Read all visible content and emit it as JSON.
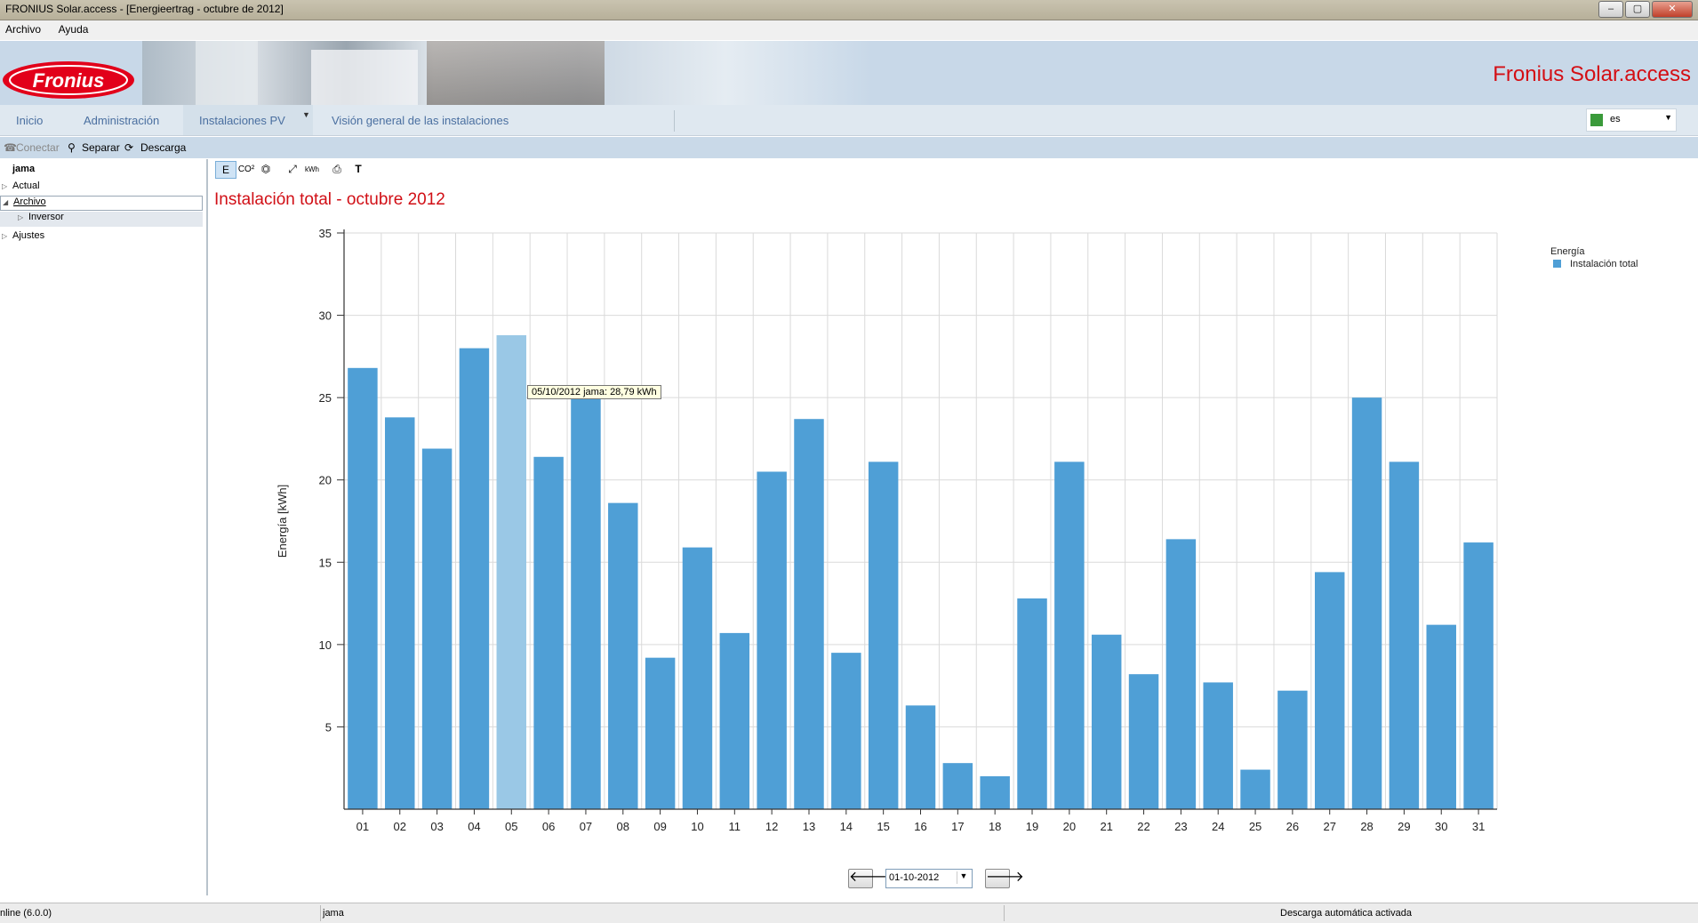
{
  "window": {
    "title": "FRONIUS Solar.access - [Energieertrag - octubre de 2012]"
  },
  "menu": [
    "Archivo",
    "Ayuda"
  ],
  "banner": {
    "app_title": "Fronius Solar.access",
    "logo_text": "Fronius"
  },
  "tabs": [
    "Inicio",
    "Administración",
    "Instalaciones PV",
    "Visión general de las instalaciones"
  ],
  "language": "es",
  "connect_toolbar": {
    "connect": "Conectar",
    "disconnect": "Separar",
    "download": "Descarga"
  },
  "sidebar": {
    "root": "jama",
    "items": [
      {
        "label": "Actual",
        "level": 0,
        "expanded": false
      },
      {
        "label": "Archivo",
        "level": 0,
        "expanded": true
      },
      {
        "label": "Inversor",
        "level": 1,
        "expanded": false
      },
      {
        "label": "Ajustes",
        "level": 0,
        "expanded": false
      }
    ]
  },
  "chart_toolbar": [
    "E",
    "CO²",
    "⏣",
    "⤢",
    "kWh",
    "⎙",
    "T"
  ],
  "chart_data": {
    "type": "bar",
    "title": "Instalación total - octubre 2012",
    "ylabel": "Energía [kWh]",
    "xlabel": "",
    "ylim": [
      0,
      35
    ],
    "yticks": [
      5,
      10,
      15,
      20,
      25,
      30,
      35
    ],
    "grid": true,
    "legend_position": "top-right",
    "legend_title": "Energía",
    "categories": [
      "01",
      "02",
      "03",
      "04",
      "05",
      "06",
      "07",
      "08",
      "09",
      "10",
      "11",
      "12",
      "13",
      "14",
      "15",
      "16",
      "17",
      "18",
      "19",
      "20",
      "21",
      "22",
      "23",
      "24",
      "25",
      "26",
      "27",
      "28",
      "29",
      "30",
      "31"
    ],
    "series": [
      {
        "name": "Instalación total",
        "color": "#4f9fd6",
        "values": [
          26.8,
          23.8,
          21.9,
          28.0,
          28.79,
          21.4,
          25.6,
          18.6,
          9.2,
          15.9,
          10.7,
          20.5,
          23.7,
          9.5,
          21.1,
          6.3,
          2.8,
          2.0,
          12.8,
          21.1,
          10.6,
          8.2,
          16.4,
          7.7,
          2.4,
          7.2,
          14.4,
          25.0,
          21.1,
          11.2,
          16.2
        ]
      }
    ],
    "highlight_index": 4,
    "highlight_color": "#9ac8e6",
    "tooltip": "05/10/2012 jama: 28,79 kWh"
  },
  "date_selector": {
    "value": "01-10-2012",
    "prev": "🡐",
    "next": "🡒"
  },
  "status": {
    "left": "nline (6.0.0)",
    "middle": "jama",
    "right": "Descarga automática activada"
  }
}
